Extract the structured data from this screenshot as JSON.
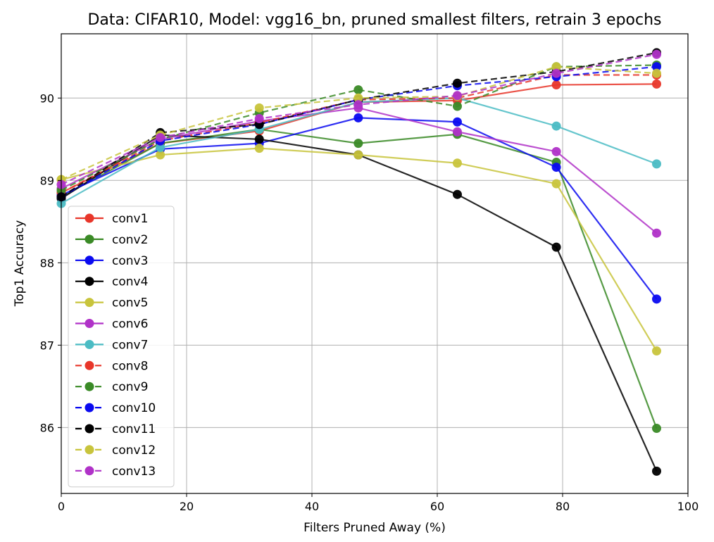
{
  "chart_data": {
    "type": "line",
    "title": "Data: CIFAR10, Model: vgg16_bn, pruned smallest filters, retrain 3 epochs",
    "xlabel": "Filters Pruned Away (%)",
    "ylabel": "Top1 Accuracy",
    "xlim": [
      0,
      100
    ],
    "ylim": [
      85.2,
      90.78
    ],
    "xticks": [
      0,
      20,
      40,
      60,
      80,
      100
    ],
    "yticks": [
      86,
      87,
      88,
      89,
      90
    ],
    "grid": true,
    "legend_position": "lower-left",
    "x": [
      0,
      15.8,
      31.6,
      47.4,
      63.2,
      79,
      95
    ],
    "series": [
      {
        "name": "conv1",
        "color": "#e8362a",
        "dash": "solid",
        "values": [
          88.85,
          89.45,
          89.6,
          89.95,
          89.97,
          90.16,
          90.17
        ]
      },
      {
        "name": "conv2",
        "color": "#3a8a26",
        "dash": "solid",
        "values": [
          88.8,
          89.45,
          89.62,
          89.45,
          89.56,
          89.22,
          85.99
        ]
      },
      {
        "name": "conv3",
        "color": "#0a0af0",
        "dash": "solid",
        "values": [
          88.82,
          89.38,
          89.45,
          89.76,
          89.71,
          89.16,
          87.56
        ]
      },
      {
        "name": "conv4",
        "color": "#000000",
        "dash": "solid",
        "values": [
          88.78,
          89.55,
          89.5,
          89.31,
          88.83,
          88.19,
          85.47
        ]
      },
      {
        "name": "conv5",
        "color": "#c8c43c",
        "dash": "solid",
        "values": [
          89.01,
          89.31,
          89.39,
          89.31,
          89.21,
          88.96,
          86.93
        ]
      },
      {
        "name": "conv6",
        "color": "#b032c8",
        "dash": "solid",
        "values": [
          88.9,
          89.5,
          89.72,
          89.88,
          89.59,
          89.35,
          88.36
        ]
      },
      {
        "name": "conv7",
        "color": "#4bbcc4",
        "dash": "solid",
        "values": [
          88.72,
          89.4,
          89.62,
          89.95,
          90.0,
          89.66,
          89.2
        ]
      },
      {
        "name": "conv8",
        "color": "#e8362a",
        "dash": "dashed",
        "values": [
          88.85,
          89.48,
          89.7,
          89.98,
          90.0,
          90.28,
          90.28
        ]
      },
      {
        "name": "conv9",
        "color": "#3a8a26",
        "dash": "dashed",
        "values": [
          88.88,
          89.5,
          89.82,
          90.1,
          89.9,
          90.38,
          90.4
        ]
      },
      {
        "name": "conv10",
        "color": "#0a0af0",
        "dash": "dashed",
        "values": [
          88.8,
          89.48,
          89.68,
          89.98,
          90.15,
          90.26,
          90.38
        ]
      },
      {
        "name": "conv11",
        "color": "#000000",
        "dash": "dashed",
        "values": [
          88.8,
          89.58,
          89.68,
          89.98,
          90.18,
          90.32,
          90.55
        ]
      },
      {
        "name": "conv12",
        "color": "#c8c43c",
        "dash": "dashed",
        "values": [
          89.01,
          89.55,
          89.88,
          90.0,
          90.02,
          90.38,
          90.3
        ]
      },
      {
        "name": "conv13",
        "color": "#b032c8",
        "dash": "dashed",
        "values": [
          88.95,
          89.52,
          89.75,
          89.92,
          90.03,
          90.3,
          90.53
        ]
      }
    ]
  }
}
